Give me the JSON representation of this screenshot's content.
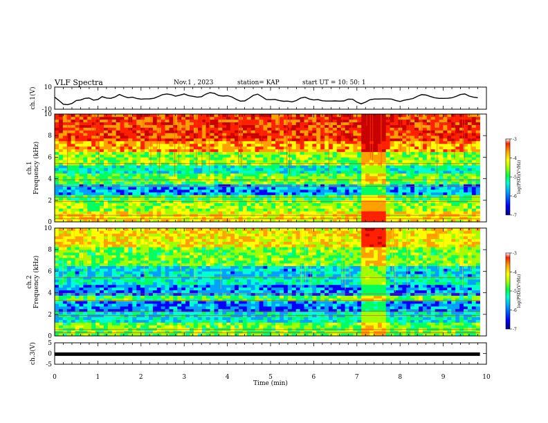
{
  "header": {
    "title": "VLF Spectra",
    "date": "Nov.1 , 2023",
    "station": "station= KAP",
    "start_ut": "start UT = 10: 50: 1"
  },
  "colors": {
    "line": "#000000",
    "cmap": [
      "#00008c",
      "#0000ff",
      "#00a0ff",
      "#00ffd0",
      "#00ff60",
      "#a0ff00",
      "#ffff00",
      "#ffa000",
      "#ff2000",
      "#c80000"
    ]
  },
  "chart_data": [
    {
      "type": "line",
      "ylabel": "ch.1(V)",
      "ylim": [
        -10,
        10
      ],
      "yticks": [
        "10",
        "-10"
      ],
      "xlim": [
        0,
        9.85
      ],
      "x_step_min": 0.1,
      "values": [
        0.9,
        -2.1,
        -5.5,
        -5.9,
        -4.8,
        -2.1,
        -1.7,
        -0.2,
        0.1,
        -1.8,
        -1.2,
        1.4,
        0.1,
        -0.2,
        1.1,
        3.3,
        1.6,
        0.4,
        0.9,
        -0.3,
        -0.9,
        -0.7,
        -0.6,
        -0.1,
        1.5,
        3.2,
        3.8,
        3.2,
        1.8,
        2.7,
        3.8,
        2.3,
        1.7,
        0.9,
        1.3,
        3.6,
        5.0,
        4.3,
        2.4,
        1.9,
        2.2,
        1.2,
        -1.0,
        -2.7,
        -2.5,
        -0.2,
        2.5,
        3.6,
        1.4,
        -1.2,
        -1.4,
        -1.1,
        -2.1,
        -2.8,
        -2.7,
        -3.4,
        -2.1,
        0.1,
        0.9,
        -0.8,
        -1.6,
        -1.3,
        -2.4,
        -2.6,
        -2.6,
        -2.5,
        -2.7,
        -2.5,
        -0.9,
        -1.0,
        -3.6,
        -5.1,
        -3.6,
        -1.5,
        -0.8,
        -0.8,
        -0.7,
        -0.7,
        -0.8,
        -2.1,
        -3.0,
        -1.8,
        -1.1,
        -0.3,
        1.6,
        3.2,
        2.8,
        1.5,
        0.4,
        -0.2,
        -0.2,
        -0.1,
        0.3,
        1.6,
        3.3,
        3.8,
        1.9,
        0.9,
        0.4
      ]
    },
    {
      "type": "heatmap",
      "ylabel": "ch.1\nFrequency (kHz)",
      "ylim": [
        0,
        10
      ],
      "yticks": [
        "0",
        "2",
        "4",
        "6",
        "8",
        "10"
      ],
      "xlim": [
        0,
        9.85
      ],
      "colorbar": {
        "label": "log(PSD)(V²/Hz)",
        "range": [
          -7,
          -3
        ],
        "ticks": [
          "-3",
          "-4",
          "-5",
          "-6",
          "-7"
        ]
      },
      "rows_hz_band_kHz": [
        {
          "from": 0,
          "to": 1,
          "level": 6.0
        },
        {
          "from": 1,
          "to": 2,
          "level": 5.0
        },
        {
          "from": 2,
          "to": 2.6,
          "level": 4.2
        },
        {
          "from": 2.6,
          "to": 3.4,
          "level": 2.2
        },
        {
          "from": 3.4,
          "to": 4.6,
          "level": 4.5
        },
        {
          "from": 4.6,
          "to": 5.2,
          "level": 3.2
        },
        {
          "from": 5.2,
          "to": 6.4,
          "level": 4.8
        },
        {
          "from": 6.4,
          "to": 7.6,
          "level": 6.8
        },
        {
          "from": 7.6,
          "to": 10,
          "level": 8.0
        }
      ],
      "burst": {
        "from_min": 7.1,
        "to_min": 7.7
      }
    },
    {
      "type": "heatmap",
      "ylabel": "ch.2\nFrequency (kHz)",
      "ylim": [
        0,
        10
      ],
      "yticks": [
        "0",
        "2",
        "4",
        "6",
        "8",
        "10"
      ],
      "xlim": [
        0,
        9.85
      ],
      "colorbar": {
        "label": "log(PSD)(V²/Hz)",
        "range": [
          -7,
          -3
        ],
        "ticks": [
          "-3",
          "-4",
          "-5",
          "-6",
          "-7"
        ]
      },
      "rows_hz_band_kHz": [
        {
          "from": 0,
          "to": 1.2,
          "level": 4.6
        },
        {
          "from": 1.2,
          "to": 2.2,
          "level": 3.0
        },
        {
          "from": 2.2,
          "to": 3.2,
          "level": 1.8
        },
        {
          "from": 3.2,
          "to": 3.8,
          "level": 4.4
        },
        {
          "from": 3.8,
          "to": 4.8,
          "level": 2.0
        },
        {
          "from": 4.8,
          "to": 5.6,
          "level": 3.2
        },
        {
          "from": 5.6,
          "to": 6.4,
          "level": 2.6
        },
        {
          "from": 6.4,
          "to": 8.2,
          "level": 4.6
        },
        {
          "from": 8.2,
          "to": 10,
          "level": 6.2
        }
      ],
      "burst": {
        "from_min": 7.1,
        "to_min": 7.7
      }
    },
    {
      "type": "line",
      "ylabel": "ch.3(V)",
      "ylim": [
        -5,
        5
      ],
      "yticks": [
        "5",
        "0",
        "-5"
      ],
      "xlim": [
        0,
        9.85
      ],
      "constant_value": -0.3
    }
  ],
  "xaxis": {
    "label": "Time (min)",
    "ticks": [
      "0",
      "1",
      "2",
      "3",
      "4",
      "5",
      "6",
      "7",
      "8",
      "9",
      "10"
    ]
  }
}
